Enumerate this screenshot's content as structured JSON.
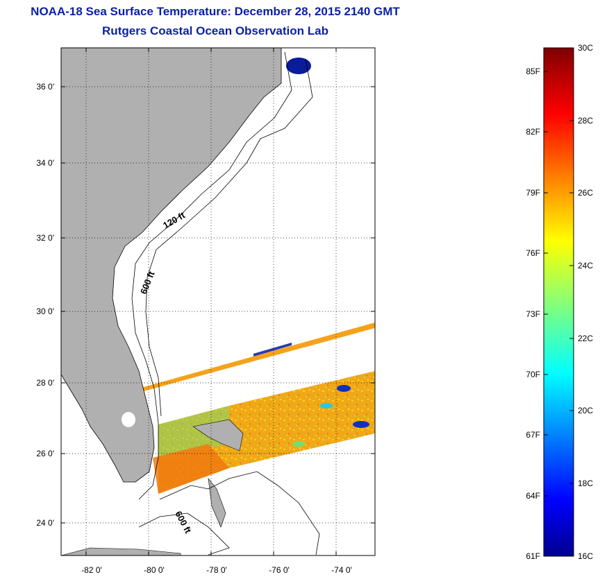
{
  "titles": {
    "line1": "NOAA-18 Sea Surface Temperature:  December 28, 2015 2140 GMT",
    "line2": "Rutgers Coastal Ocean Observation Lab"
  },
  "map": {
    "lon_range": [
      -83,
      -73
    ],
    "lat_range": [
      23,
      37
    ],
    "lon_ticks": [
      {
        "value": -82,
        "label": "-82 0'"
      },
      {
        "value": -80,
        "label": "-80 0'"
      },
      {
        "value": -78,
        "label": "-78 0'"
      },
      {
        "value": -76,
        "label": "-76 0'"
      },
      {
        "value": -74,
        "label": "-74 0'"
      }
    ],
    "lat_ticks": [
      {
        "value": 24,
        "label": "24 0'"
      },
      {
        "value": 26,
        "label": "26 0'"
      },
      {
        "value": 28,
        "label": "28 0'"
      },
      {
        "value": 30,
        "label": "30 0'"
      },
      {
        "value": 32,
        "label": "32 0'"
      },
      {
        "value": 34,
        "label": "34 0'"
      },
      {
        "value": 36,
        "label": "36 0'"
      }
    ],
    "contour_labels": [
      "120 ft",
      "600 ft",
      "600 ft"
    ],
    "land_color": "#b0b0b0",
    "grid": "dotted"
  },
  "colorbar": {
    "celsius_labels": [
      "30C",
      "28C",
      "26C",
      "24C",
      "22C",
      "20C",
      "18C",
      "16C"
    ],
    "fahrenheit_labels": [
      "85F",
      "82F",
      "79F",
      "76F",
      "73F",
      "70F",
      "67F",
      "64F",
      "61F"
    ],
    "colormap": "jet",
    "range_celsius": [
      16,
      30
    ]
  }
}
